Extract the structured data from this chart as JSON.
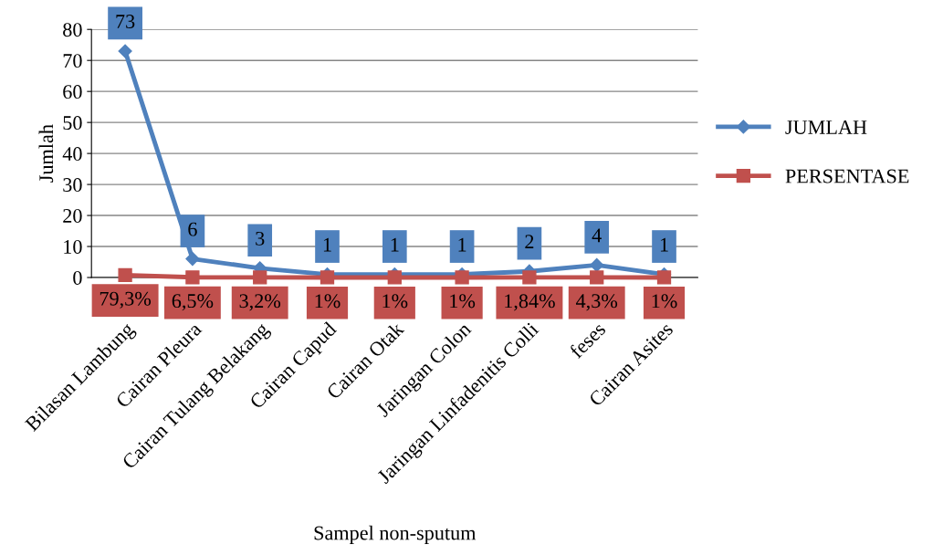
{
  "chart_data": {
    "type": "line",
    "xlabel": "Sampel non-sputum",
    "ylabel": "Jumlah",
    "categories": [
      "Bilasan Lambung",
      "Cairan Pleura",
      "Cairan Tulang Belakang",
      "Cairan Capud",
      "Cairan Otak",
      "Jaringan Colon",
      "Jaringan Linfadenitis Colli",
      "feses",
      "Cairan Asites"
    ],
    "series": [
      {
        "name": "JUMLAH",
        "color": "#4f81bd",
        "marker": "diamond",
        "values": [
          73,
          6,
          3,
          1,
          1,
          1,
          2,
          4,
          1
        ],
        "value_labels": [
          "73",
          "6",
          "3",
          "1",
          "1",
          "1",
          "2",
          "4",
          "1"
        ]
      },
      {
        "name": "PERSENTASE",
        "color": "#c0504d",
        "marker": "square",
        "values": [
          0.793,
          0.065,
          0.032,
          0.01,
          0.01,
          0.01,
          0.0184,
          0.043,
          0.01
        ],
        "value_labels": [
          "79,3%",
          "6,5%",
          "3,2%",
          "1%",
          "1%",
          "1%",
          "1,84%",
          "4,3%",
          "1%"
        ]
      }
    ],
    "ylim": [
      0,
      80
    ],
    "yticks": [
      0,
      10,
      20,
      30,
      40,
      50,
      60,
      70,
      80
    ],
    "grid": "y",
    "legend": "right",
    "line_style": "solid"
  }
}
